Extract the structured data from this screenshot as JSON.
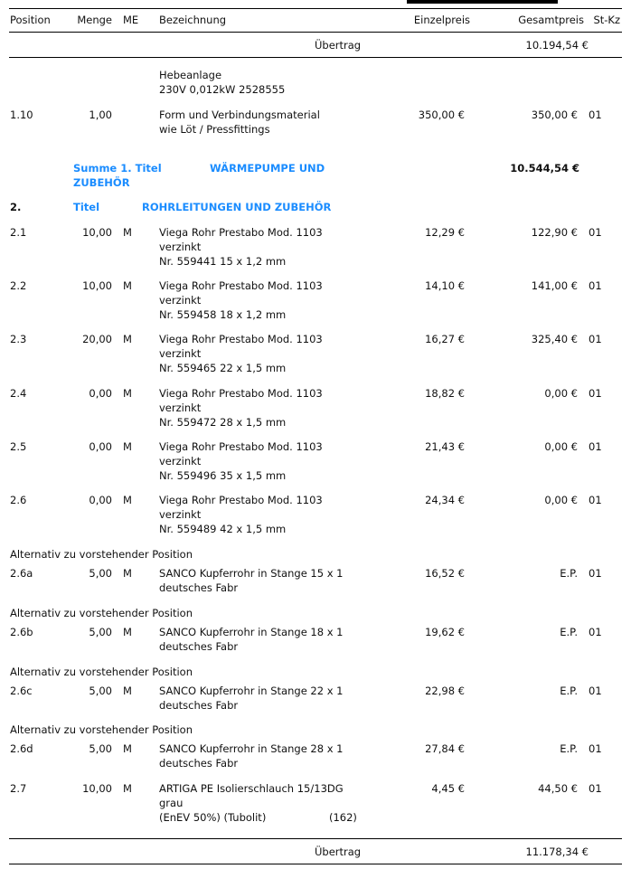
{
  "header": {
    "position": "Position",
    "menge": "Menge",
    "me": "ME",
    "bezeichnung": "Bezeichnung",
    "einzelpreis": "Einzelpreis",
    "gesamtpreis": "Gesamtpreis",
    "stkz": "St-Kz"
  },
  "uebertrag_top": {
    "label": "Übertrag",
    "value": "10.194,54 €"
  },
  "uebertrag_bottom": {
    "label": "Übertrag",
    "value": "11.178,34 €"
  },
  "summe": {
    "label": "Summe 1. Titel",
    "title_line1": "WÄRMEPUMPE UND",
    "title_line2": "ZUBEHÖR",
    "value": "10.544,54 €"
  },
  "titel2": {
    "number": "2.",
    "label": "Titel",
    "title": "ROHRLEITUNGEN UND ZUBEHÖR"
  },
  "items": [
    {
      "pre": [
        "Hebeanlage",
        "230V 0,012kW 2528555"
      ],
      "pos": "1.10",
      "menge": "1,00",
      "me": "",
      "desc": [
        "Form und Verbindungsmaterial",
        "wie Löt / Pressfittings"
      ],
      "ep": "350,00 €",
      "gp": "350,00 €",
      "stkz": "01"
    },
    {
      "pos": "2.1",
      "menge": "10,00",
      "me": "M",
      "desc": [
        "Viega Rohr Prestabo Mod. 1103",
        "verzinkt",
        "Nr. 559441 15 x 1,2 mm"
      ],
      "ep": "12,29 €",
      "gp": "122,90 €",
      "stkz": "01"
    },
    {
      "pos": "2.2",
      "menge": "10,00",
      "me": "M",
      "desc": [
        "Viega Rohr Prestabo Mod. 1103",
        "verzinkt",
        "Nr. 559458 18 x 1,2 mm"
      ],
      "ep": "14,10 €",
      "gp": "141,00 €",
      "stkz": "01"
    },
    {
      "pos": "2.3",
      "menge": "20,00",
      "me": "M",
      "desc": [
        "Viega Rohr Prestabo Mod. 1103",
        "verzinkt",
        "Nr. 559465 22 x 1,5 mm"
      ],
      "ep": "16,27 €",
      "gp": "325,40 €",
      "stkz": "01"
    },
    {
      "pos": "2.4",
      "menge": "0,00",
      "me": "M",
      "desc": [
        "Viega Rohr Prestabo Mod. 1103",
        "verzinkt",
        "Nr. 559472 28 x 1,5 mm"
      ],
      "ep": "18,82 €",
      "gp": "0,00 €",
      "stkz": "01"
    },
    {
      "pos": "2.5",
      "menge": "0,00",
      "me": "M",
      "desc": [
        "Viega Rohr Prestabo Mod. 1103",
        "verzinkt",
        "Nr. 559496 35 x 1,5 mm"
      ],
      "ep": "21,43 €",
      "gp": "0,00 €",
      "stkz": "01"
    },
    {
      "pos": "2.6",
      "menge": "0,00",
      "me": "M",
      "desc": [
        "Viega Rohr Prestabo Mod. 1103",
        "verzinkt",
        "Nr. 559489 42 x 1,5 mm"
      ],
      "ep": "24,34 €",
      "gp": "0,00 €",
      "stkz": "01"
    },
    {
      "alt": "Alternativ zu vorstehender Position",
      "pos": "2.6a",
      "menge": "5,00",
      "me": "M",
      "desc": [
        "SANCO Kupferrohr in Stange 15 x 1",
        "deutsches Fabr"
      ],
      "ep": "16,52 €",
      "gp": "E.P.",
      "stkz": "01"
    },
    {
      "alt": "Alternativ zu vorstehender Position",
      "pos": "2.6b",
      "menge": "5,00",
      "me": "M",
      "desc": [
        "SANCO Kupferrohr in Stange 18 x 1",
        "deutsches Fabr"
      ],
      "ep": "19,62 €",
      "gp": "E.P.",
      "stkz": "01"
    },
    {
      "alt": "Alternativ zu vorstehender Position",
      "pos": "2.6c",
      "menge": "5,00",
      "me": "M",
      "desc": [
        "SANCO Kupferrohr in Stange 22 x 1",
        "deutsches Fabr"
      ],
      "ep": "22,98 €",
      "gp": "E.P.",
      "stkz": "01"
    },
    {
      "alt": "Alternativ zu vorstehender Position",
      "pos": "2.6d",
      "menge": "5,00",
      "me": "M",
      "desc": [
        "SANCO Kupferrohr in Stange 28 x 1",
        "deutsches Fabr"
      ],
      "ep": "27,84 €",
      "gp": "E.P.",
      "stkz": "01"
    },
    {
      "pos": "2.7",
      "menge": "10,00",
      "me": "M",
      "desc": [
        "ARTIGA PE Isolierschlauch 15/13DG",
        "grau",
        "(EnEV 50%)  (Tubolit)"
      ],
      "desc_note": "(162)",
      "ep": "4,45 €",
      "gp": "44,50 €",
      "stkz": "01"
    }
  ]
}
